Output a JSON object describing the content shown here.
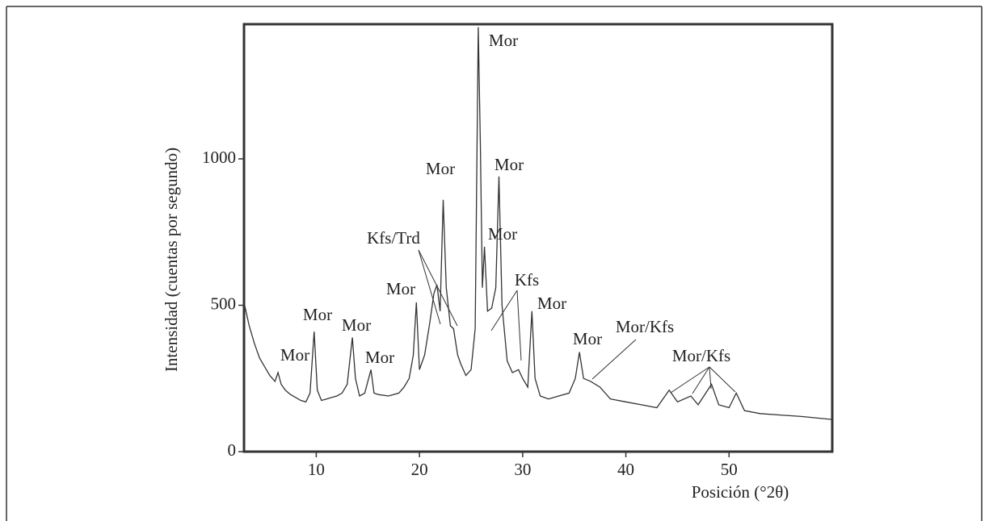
{
  "chart_data": {
    "type": "line",
    "x_label": "Posición (°2θ)",
    "y_label": "Intensidad (cuentas por segundo)",
    "x": [
      3,
      3.5,
      4,
      4.5,
      5,
      5.5,
      6,
      6.3,
      6.6,
      7,
      7.5,
      8,
      8.5,
      9,
      9.4,
      9.8,
      10.1,
      10.5,
      11,
      11.5,
      12,
      12.5,
      13,
      13.5,
      13.8,
      14.2,
      14.7,
      15.3,
      15.6,
      16,
      17,
      18,
      18.5,
      19,
      19.4,
      19.7,
      20,
      20.5,
      21,
      21.4,
      21.7,
      22,
      22.3,
      22.6,
      23,
      23.3,
      23.7,
      24,
      24.5,
      25,
      25.4,
      25.7,
      25.9,
      26.1,
      26.3,
      26.6,
      27,
      27.4,
      27.7,
      28,
      28.5,
      29,
      29.6,
      30,
      30.5,
      30.9,
      31.2,
      31.7,
      32.5,
      33.5,
      34.5,
      35.1,
      35.5,
      35.9,
      36.6,
      37.5,
      38.5,
      40,
      41.5,
      43,
      44.2,
      45,
      46.3,
      47,
      48.3,
      49,
      50,
      50.7,
      51.5,
      53,
      55,
      57,
      60
    ],
    "values": [
      510,
      430,
      370,
      320,
      290,
      260,
      240,
      270,
      230,
      210,
      195,
      185,
      175,
      170,
      200,
      410,
      210,
      175,
      180,
      185,
      190,
      200,
      230,
      390,
      250,
      190,
      200,
      280,
      200,
      195,
      190,
      200,
      220,
      250,
      330,
      510,
      280,
      330,
      440,
      540,
      570,
      480,
      860,
      560,
      430,
      420,
      330,
      300,
      260,
      280,
      420,
      1450,
      1050,
      560,
      700,
      480,
      490,
      560,
      940,
      500,
      310,
      270,
      280,
      250,
      220,
      480,
      250,
      190,
      180,
      190,
      200,
      250,
      340,
      250,
      240,
      220,
      180,
      170,
      160,
      150,
      210,
      170,
      190,
      160,
      230,
      160,
      150,
      200,
      140,
      130,
      125,
      120,
      110
    ],
    "color": "#333333",
    "xlim": [
      3,
      60
    ],
    "xticks": [
      10,
      20,
      30,
      40,
      50
    ],
    "ylim": [
      0,
      1460
    ],
    "yticks": [
      0,
      500,
      1000
    ],
    "annotations": [
      "Mor",
      "Mor",
      "Mor",
      "Mor",
      "Mor",
      "Mor",
      "Kfs/Trd",
      "Mor",
      "Mor",
      "Mor",
      "Kfs",
      "Mor",
      "Mor",
      "Mor/Kfs",
      "Mor/Kfs"
    ]
  }
}
